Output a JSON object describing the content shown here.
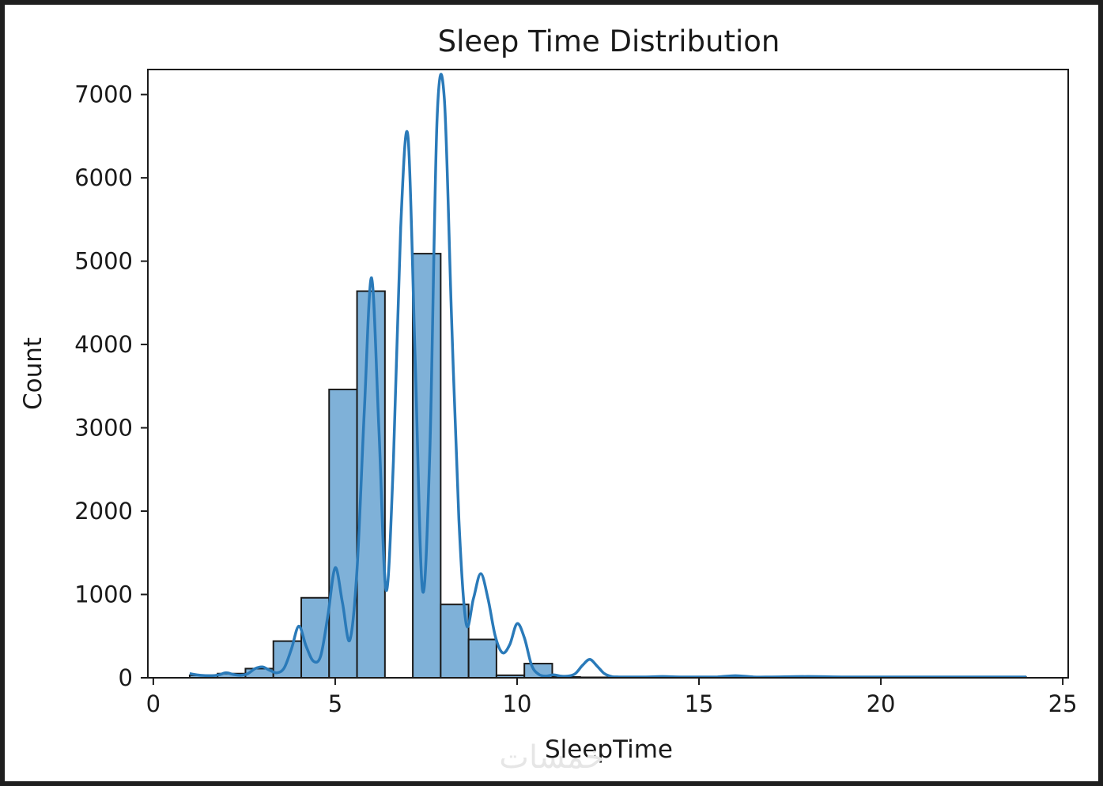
{
  "chart_data": {
    "type": "bar",
    "title": "Sleep Time Distribution",
    "xlabel": "SleepTime",
    "ylabel": "Count",
    "xlim": [
      -0.15,
      25.15
    ],
    "ylim": [
      0,
      7300
    ],
    "xticks": [
      0,
      5,
      10,
      15,
      20,
      25
    ],
    "yticks": [
      0,
      1000,
      2000,
      3000,
      4000,
      5000,
      6000,
      7000
    ],
    "bin_edges": [
      1.0,
      1.767,
      2.533,
      3.3,
      4.067,
      4.833,
      5.6,
      6.367,
      7.133,
      7.9,
      8.667,
      9.433,
      10.2,
      10.967,
      11.733,
      12.5,
      13.267,
      14.033,
      14.8,
      15.567,
      16.333,
      17.1,
      17.867,
      18.633,
      19.4,
      20.167,
      20.933,
      21.7,
      22.467,
      23.233,
      24.0
    ],
    "counts": [
      30,
      50,
      110,
      440,
      960,
      3460,
      4640,
      0,
      5090,
      880,
      460,
      30,
      170,
      10,
      5,
      5,
      5,
      5,
      5,
      5,
      5,
      5,
      5,
      5,
      5,
      5,
      5,
      5,
      5,
      5
    ],
    "kde": {
      "x": [
        1.0,
        1.3,
        1.6,
        1.8,
        2.0,
        2.2,
        2.4,
        2.6,
        2.8,
        3.0,
        3.2,
        3.4,
        3.6,
        3.8,
        4.0,
        4.2,
        4.4,
        4.6,
        4.8,
        5.0,
        5.2,
        5.4,
        5.6,
        5.8,
        6.0,
        6.2,
        6.4,
        6.6,
        6.8,
        7.0,
        7.2,
        7.4,
        7.6,
        7.8,
        8.0,
        8.2,
        8.4,
        8.6,
        8.8,
        9.0,
        9.2,
        9.4,
        9.6,
        9.8,
        10.0,
        10.2,
        10.4,
        10.6,
        10.8,
        11.0,
        11.2,
        11.4,
        11.6,
        11.8,
        12.0,
        12.2,
        12.4,
        12.6,
        12.8,
        13.0,
        13.5,
        14.0,
        14.5,
        15.0,
        15.5,
        16.0,
        16.5,
        17.0,
        18.0,
        19.0,
        20.0,
        21.0,
        22.0,
        23.0,
        24.0
      ],
      "y": [
        50,
        30,
        25,
        35,
        60,
        40,
        30,
        50,
        110,
        130,
        90,
        60,
        120,
        350,
        620,
        380,
        200,
        260,
        750,
        1320,
        900,
        450,
        1300,
        3200,
        4800,
        3000,
        1050,
        2600,
        5400,
        6500,
        3800,
        1050,
        2700,
        6700,
        6950,
        4300,
        1900,
        650,
        950,
        1250,
        950,
        500,
        300,
        400,
        650,
        480,
        150,
        40,
        20,
        35,
        20,
        20,
        50,
        150,
        220,
        140,
        50,
        15,
        10,
        10,
        10,
        15,
        10,
        10,
        10,
        25,
        10,
        10,
        15,
        10,
        10,
        10,
        10,
        10,
        10
      ]
    },
    "bar_color": "#7fb1d8",
    "bar_edge_color": "#1a1a1a",
    "line_color": "#2a7ab9",
    "grid": false,
    "legend": "none"
  }
}
